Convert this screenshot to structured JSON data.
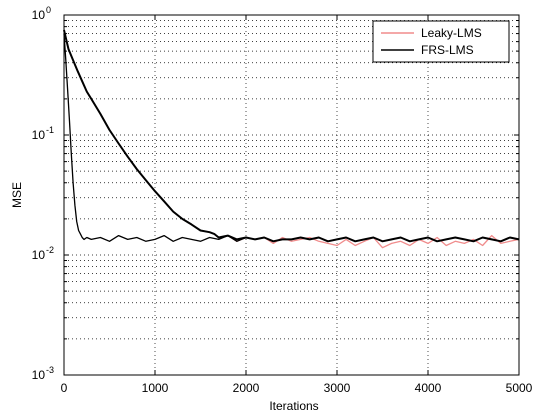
{
  "chart_data": {
    "type": "line",
    "title": "",
    "xlabel": "Iterations",
    "ylabel": "MSE",
    "xlim": [
      0,
      5000
    ],
    "ylim": [
      0.001,
      1
    ],
    "yscale": "log",
    "grid": "dotted, on (major and minor y)",
    "legend_position": "top-right",
    "x_ticks": [
      {
        "value": 0,
        "label": "0"
      },
      {
        "value": 1000,
        "label": "1000"
      },
      {
        "value": 2000,
        "label": "2000"
      },
      {
        "value": 3000,
        "label": "3000"
      },
      {
        "value": 4000,
        "label": "4000"
      },
      {
        "value": 5000,
        "label": "5000"
      }
    ],
    "y_ticks": [
      {
        "value": 1,
        "base": "10",
        "exp": "0"
      },
      {
        "value": 0.1,
        "base": "10",
        "exp": "-1"
      },
      {
        "value": 0.01,
        "base": "10",
        "exp": "-2"
      },
      {
        "value": 0.001,
        "base": "10",
        "exp": "-3"
      }
    ],
    "series": [
      {
        "name": "Leaky-LMS",
        "color": "#f08c8c",
        "x": [
          0,
          25,
          50,
          100,
          150,
          200,
          250,
          300,
          400,
          500,
          600,
          700,
          800,
          900,
          1000,
          1100,
          1200,
          1300,
          1400,
          1500,
          1600,
          1650,
          1700,
          1800,
          1900,
          2000,
          2100,
          2200,
          2300,
          2400,
          2500,
          2600,
          2700,
          2800,
          2900,
          3000,
          3100,
          3200,
          3300,
          3400,
          3500,
          3600,
          3700,
          3800,
          3900,
          4000,
          4100,
          4200,
          4300,
          4400,
          4500,
          4600,
          4700,
          4800,
          4900,
          5000
        ],
        "y": [
          0.75,
          0.62,
          0.52,
          0.42,
          0.34,
          0.28,
          0.23,
          0.2,
          0.15,
          0.11,
          0.085,
          0.066,
          0.052,
          0.042,
          0.034,
          0.028,
          0.023,
          0.02,
          0.018,
          0.016,
          0.0155,
          0.015,
          0.014,
          0.0145,
          0.013,
          0.014,
          0.0135,
          0.014,
          0.0125,
          0.014,
          0.013,
          0.0135,
          0.014,
          0.013,
          0.0125,
          0.012,
          0.0135,
          0.012,
          0.013,
          0.014,
          0.0115,
          0.0125,
          0.013,
          0.012,
          0.0135,
          0.0125,
          0.014,
          0.012,
          0.013,
          0.0125,
          0.0135,
          0.012,
          0.0145,
          0.0125,
          0.013,
          0.0135
        ]
      },
      {
        "name": "FRS-LMS",
        "color": "#000000",
        "x": [
          0,
          25,
          50,
          100,
          150,
          200,
          250,
          300,
          400,
          500,
          600,
          700,
          800,
          900,
          1000,
          1100,
          1200,
          1300,
          1400,
          1500,
          1600,
          1650,
          1700,
          1800,
          1900,
          2000,
          2100,
          2200,
          2300,
          2400,
          2500,
          2600,
          2700,
          2800,
          2900,
          3000,
          3100,
          3200,
          3300,
          3400,
          3500,
          3600,
          3700,
          3800,
          3900,
          4000,
          4100,
          4200,
          4300,
          4400,
          4500,
          4600,
          4700,
          4800,
          4900,
          5000
        ],
        "y": [
          0.75,
          0.62,
          0.52,
          0.42,
          0.34,
          0.28,
          0.23,
          0.2,
          0.15,
          0.11,
          0.085,
          0.066,
          0.052,
          0.042,
          0.034,
          0.028,
          0.023,
          0.02,
          0.018,
          0.016,
          0.0155,
          0.015,
          0.014,
          0.0145,
          0.0135,
          0.014,
          0.0135,
          0.014,
          0.013,
          0.0135,
          0.0135,
          0.014,
          0.0135,
          0.014,
          0.013,
          0.0135,
          0.014,
          0.013,
          0.0135,
          0.014,
          0.013,
          0.0135,
          0.014,
          0.013,
          0.0135,
          0.014,
          0.013,
          0.0135,
          0.014,
          0.0135,
          0.013,
          0.014,
          0.0135,
          0.013,
          0.014,
          0.0135
        ]
      },
      {
        "name": "",
        "color": "#000000",
        "x": [
          0,
          20,
          40,
          60,
          80,
          100,
          120,
          140,
          160,
          180,
          200,
          220,
          250,
          300,
          400,
          500,
          600,
          700,
          800,
          900,
          1000,
          1100,
          1200,
          1300,
          1400,
          1500,
          1600,
          1700,
          1800,
          1900,
          2000
        ],
        "y": [
          0.7,
          0.42,
          0.24,
          0.13,
          0.07,
          0.04,
          0.026,
          0.019,
          0.016,
          0.015,
          0.014,
          0.0135,
          0.014,
          0.0135,
          0.014,
          0.013,
          0.0145,
          0.0135,
          0.014,
          0.013,
          0.0135,
          0.0145,
          0.013,
          0.014,
          0.0135,
          0.013,
          0.014,
          0.0135,
          0.0145,
          0.013,
          0.014
        ]
      }
    ],
    "legend": [
      {
        "label": "Leaky-LMS",
        "color": "#f08c8c"
      },
      {
        "label": "FRS-LMS",
        "color": "#000000"
      }
    ]
  }
}
